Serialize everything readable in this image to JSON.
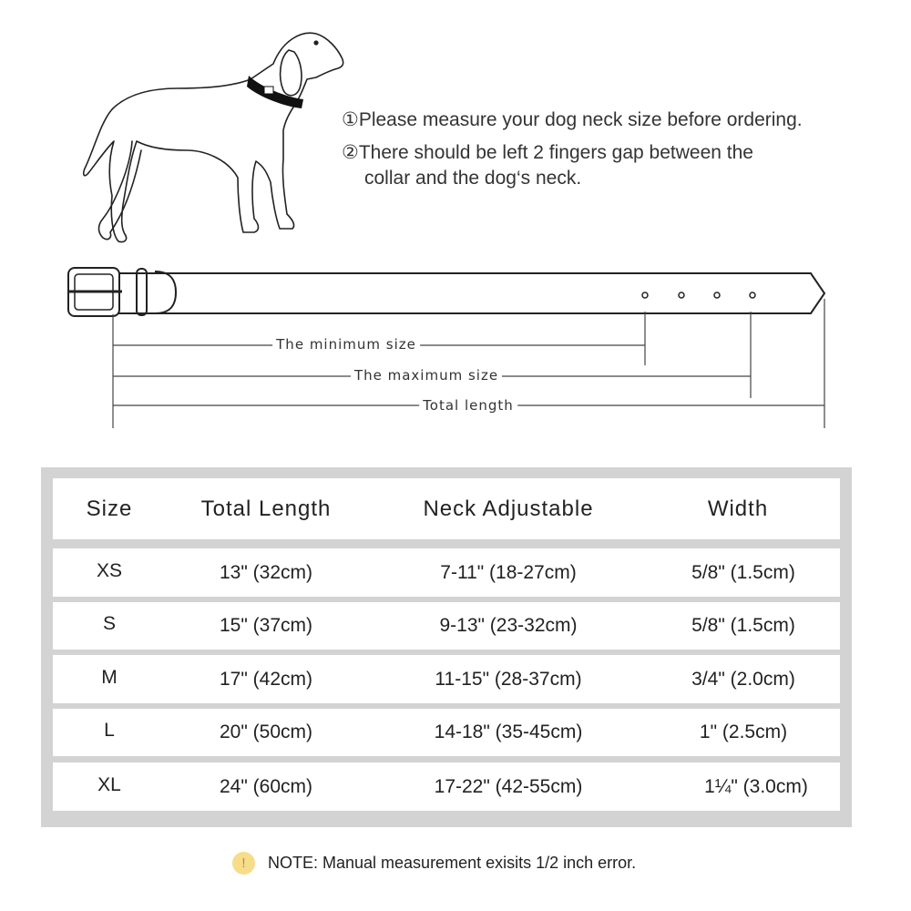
{
  "instructions": [
    "①Please measure your dog neck size before ordering.",
    "②There should be left 2 fingers gap between the",
    "collar and the dog‘s neck."
  ],
  "collar_diagram": {
    "min_label": "The minimum size",
    "max_label": "The maximum size",
    "total_label": "Total length"
  },
  "table": {
    "headers": [
      "Size",
      "Total Length",
      "Neck Adjustable",
      "Width"
    ],
    "rows": [
      [
        "XS",
        "13\" (32cm)",
        "7-11\" (18-27cm)",
        "5/8\" (1.5cm)"
      ],
      [
        "S",
        "15\" (37cm)",
        "9-13\" (23-32cm)",
        "5/8\" (1.5cm)"
      ],
      [
        "M",
        "17\" (42cm)",
        "11-15\" (28-37cm)",
        "3/4\" (2.0cm)"
      ],
      [
        "L",
        "20\" (50cm)",
        "14-18\" (35-45cm)",
        "1\" (2.5cm)"
      ],
      [
        "XL",
        "24\" (60cm)",
        "17-22\" (42-55cm)",
        "1¼\" (3.0cm)"
      ]
    ]
  },
  "note": {
    "icon": "warning-icon",
    "icon_glyph": "!",
    "text": "NOTE: Manual measurement exisits 1/2  inch error."
  },
  "colors": {
    "frame": "#d3d3d3",
    "warning": "#f7dc8a"
  }
}
